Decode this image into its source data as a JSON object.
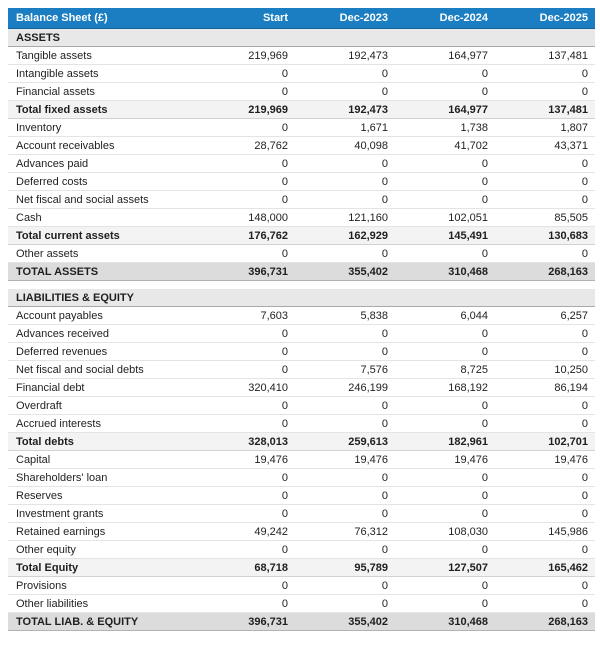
{
  "colors": {
    "header_bg": "#1b7ec2",
    "header_text": "#ffffff",
    "section_bg": "#e8e8e8",
    "subtotal_bg": "#f3f3f3",
    "grand_total_bg": "#dcdcdc",
    "row_divider": "#e4e4e4",
    "body_text": "#1f1f1f"
  },
  "chart_data": {
    "type": "table",
    "title": "Balance Sheet (£)",
    "columns": [
      "Start",
      "Dec-2023",
      "Dec-2024",
      "Dec-2025"
    ],
    "rows": [
      {
        "type": "section",
        "label": "ASSETS",
        "values": []
      },
      {
        "type": "data",
        "label": "Tangible assets",
        "values": [
          "219,969",
          "192,473",
          "164,977",
          "137,481"
        ]
      },
      {
        "type": "data",
        "label": "Intangible assets",
        "values": [
          "0",
          "0",
          "0",
          "0"
        ]
      },
      {
        "type": "data",
        "label": "Financial assets",
        "values": [
          "0",
          "0",
          "0",
          "0"
        ]
      },
      {
        "type": "subtotal",
        "label": "Total fixed assets",
        "values": [
          "219,969",
          "192,473",
          "164,977",
          "137,481"
        ]
      },
      {
        "type": "data",
        "label": "Inventory",
        "values": [
          "0",
          "1,671",
          "1,738",
          "1,807"
        ]
      },
      {
        "type": "data",
        "label": "Account receivables",
        "values": [
          "28,762",
          "40,098",
          "41,702",
          "43,371"
        ]
      },
      {
        "type": "data",
        "label": "Advances paid",
        "values": [
          "0",
          "0",
          "0",
          "0"
        ]
      },
      {
        "type": "data",
        "label": "Deferred costs",
        "values": [
          "0",
          "0",
          "0",
          "0"
        ]
      },
      {
        "type": "data",
        "label": "Net fiscal and social assets",
        "values": [
          "0",
          "0",
          "0",
          "0"
        ]
      },
      {
        "type": "data",
        "label": "Cash",
        "values": [
          "148,000",
          "121,160",
          "102,051",
          "85,505"
        ]
      },
      {
        "type": "subtotal",
        "label": "Total current assets",
        "values": [
          "176,762",
          "162,929",
          "145,491",
          "130,683"
        ]
      },
      {
        "type": "data",
        "label": "Other assets",
        "values": [
          "0",
          "0",
          "0",
          "0"
        ]
      },
      {
        "type": "total",
        "label": "TOTAL ASSETS",
        "values": [
          "396,731",
          "355,402",
          "310,468",
          "268,163"
        ]
      },
      {
        "type": "spacer",
        "label": "",
        "values": []
      },
      {
        "type": "section",
        "label": "LIABILITIES & EQUITY",
        "values": []
      },
      {
        "type": "data",
        "label": "Account payables",
        "values": [
          "7,603",
          "5,838",
          "6,044",
          "6,257"
        ]
      },
      {
        "type": "data",
        "label": "Advances received",
        "values": [
          "0",
          "0",
          "0",
          "0"
        ]
      },
      {
        "type": "data",
        "label": "Deferred revenues",
        "values": [
          "0",
          "0",
          "0",
          "0"
        ]
      },
      {
        "type": "data",
        "label": "Net fiscal and social debts",
        "values": [
          "0",
          "7,576",
          "8,725",
          "10,250"
        ]
      },
      {
        "type": "data",
        "label": "Financial debt",
        "values": [
          "320,410",
          "246,199",
          "168,192",
          "86,194"
        ]
      },
      {
        "type": "data",
        "label": "Overdraft",
        "values": [
          "0",
          "0",
          "0",
          "0"
        ]
      },
      {
        "type": "data",
        "label": "Accrued interests",
        "values": [
          "0",
          "0",
          "0",
          "0"
        ]
      },
      {
        "type": "subtotal",
        "label": "Total debts",
        "values": [
          "328,013",
          "259,613",
          "182,961",
          "102,701"
        ]
      },
      {
        "type": "data",
        "label": "Capital",
        "values": [
          "19,476",
          "19,476",
          "19,476",
          "19,476"
        ]
      },
      {
        "type": "data",
        "label": "Shareholders' loan",
        "values": [
          "0",
          "0",
          "0",
          "0"
        ]
      },
      {
        "type": "data",
        "label": "Reserves",
        "values": [
          "0",
          "0",
          "0",
          "0"
        ]
      },
      {
        "type": "data",
        "label": "Investment grants",
        "values": [
          "0",
          "0",
          "0",
          "0"
        ]
      },
      {
        "type": "data",
        "label": "Retained earnings",
        "values": [
          "49,242",
          "76,312",
          "108,030",
          "145,986"
        ]
      },
      {
        "type": "data",
        "label": "Other equity",
        "values": [
          "0",
          "0",
          "0",
          "0"
        ]
      },
      {
        "type": "subtotal",
        "label": "Total Equity",
        "values": [
          "68,718",
          "95,789",
          "127,507",
          "165,462"
        ]
      },
      {
        "type": "data",
        "label": "Provisions",
        "values": [
          "0",
          "0",
          "0",
          "0"
        ]
      },
      {
        "type": "data",
        "label": "Other liabilities",
        "values": [
          "0",
          "0",
          "0",
          "0"
        ]
      },
      {
        "type": "total",
        "label": "TOTAL LIAB. & EQUITY",
        "values": [
          "396,731",
          "355,402",
          "310,468",
          "268,163"
        ]
      }
    ]
  }
}
